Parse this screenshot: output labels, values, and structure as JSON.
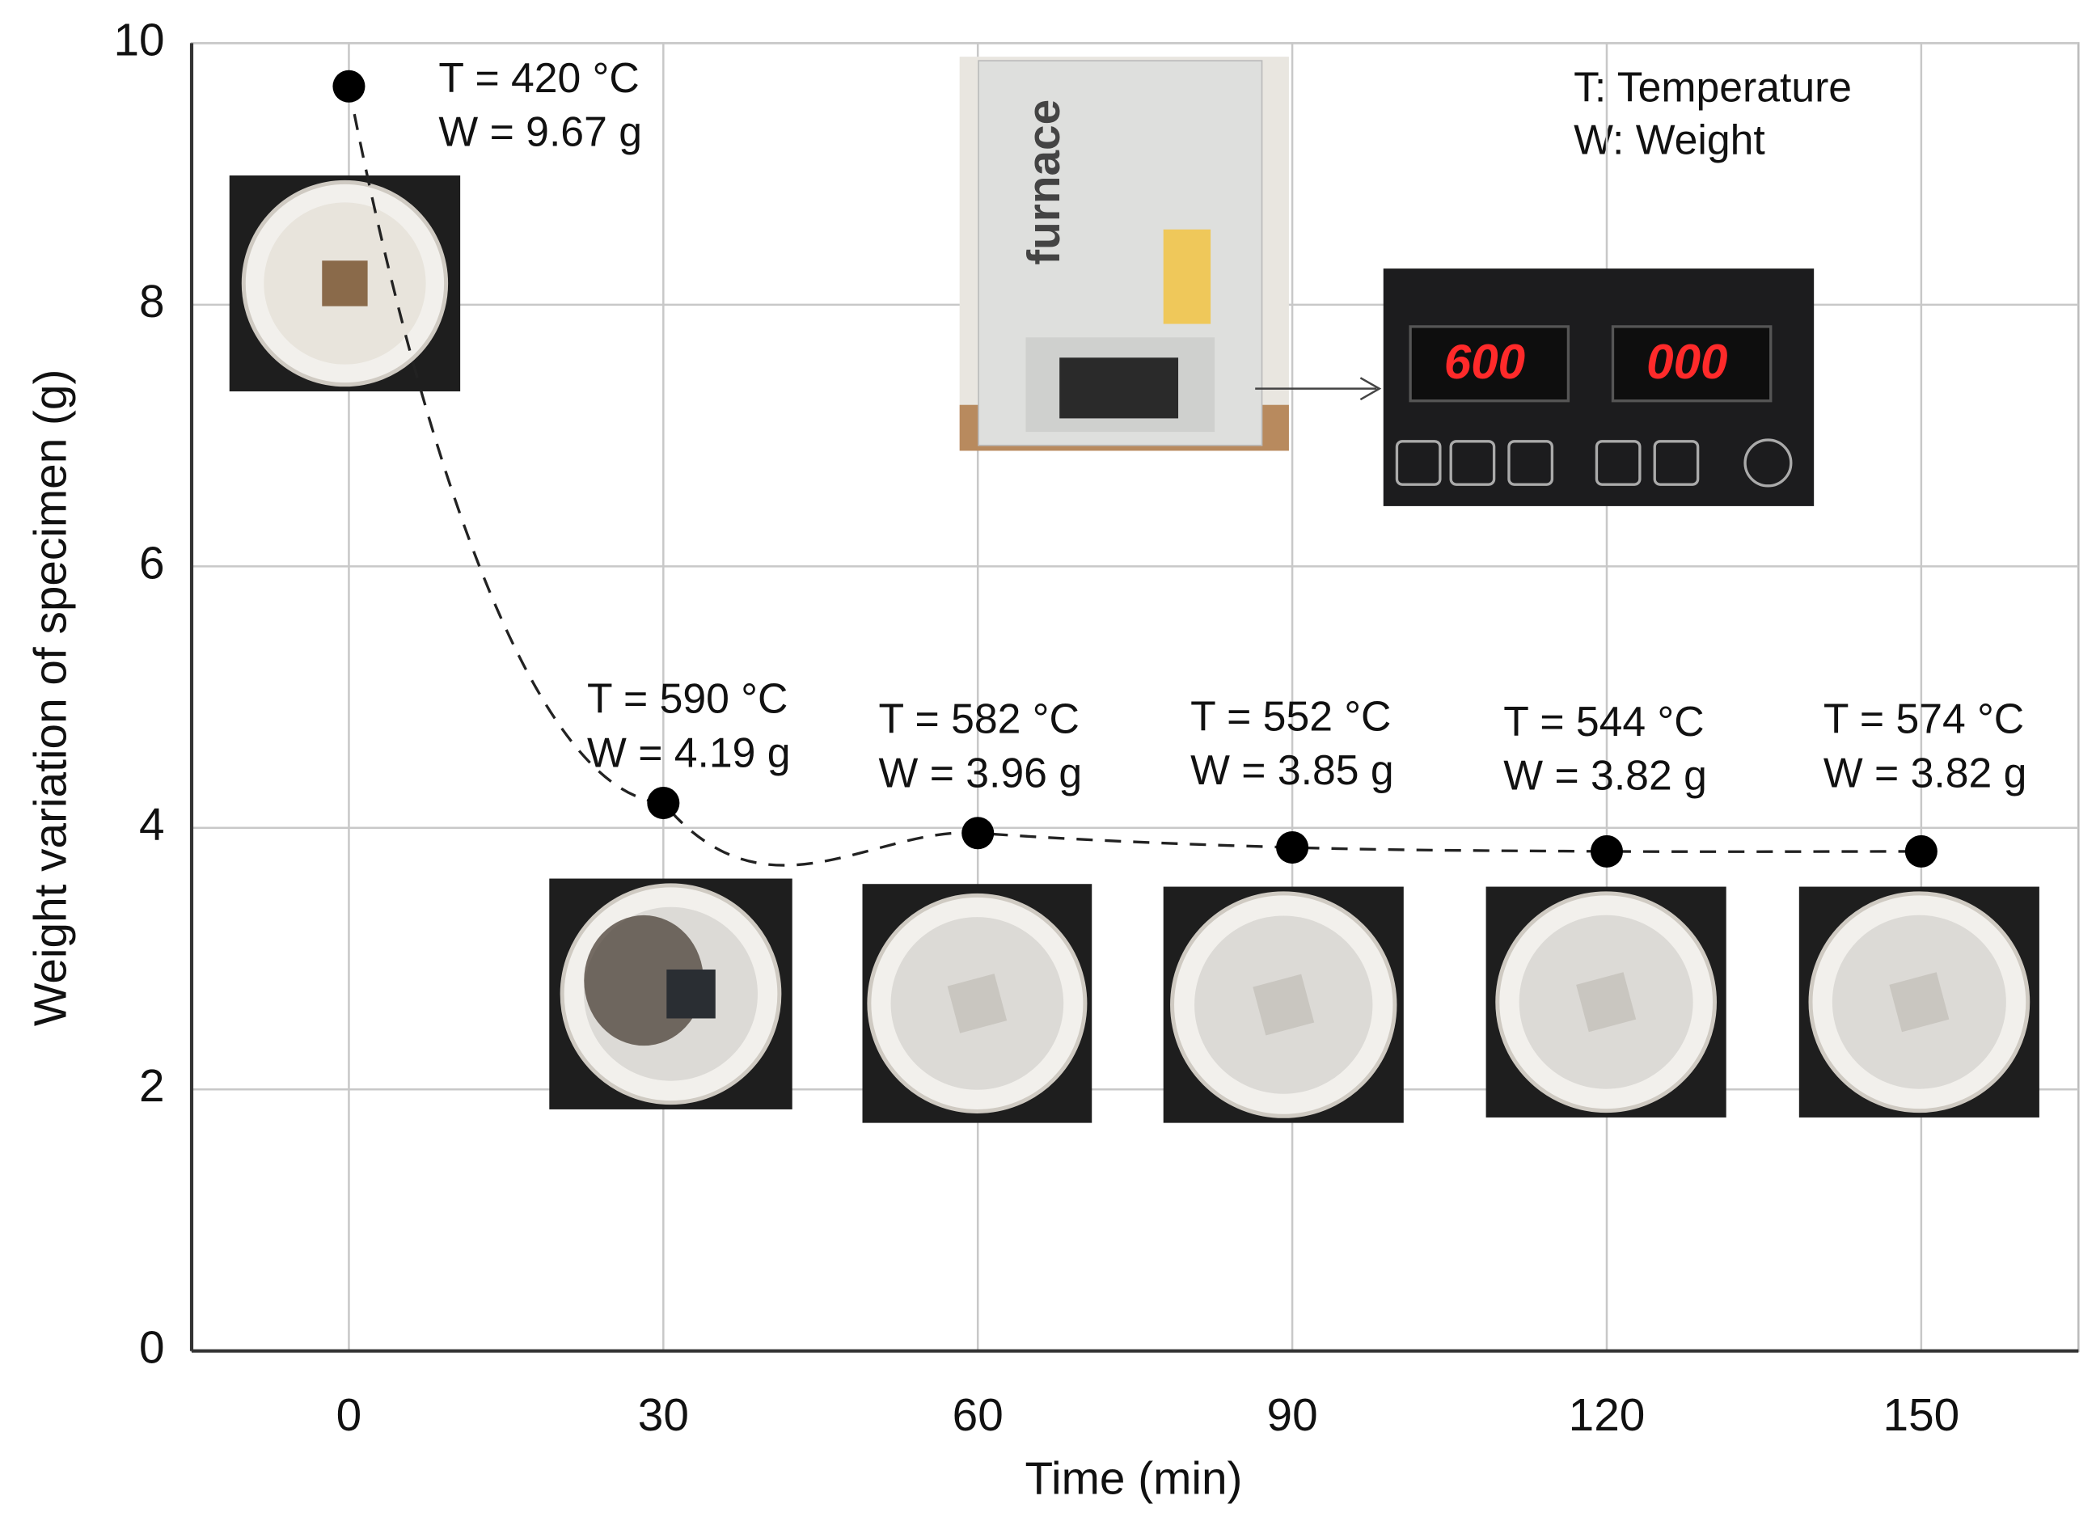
{
  "chart_data": {
    "type": "line",
    "x_label": "Time (min)",
    "y_label": "Weight variation of specimen (g)",
    "x": [
      0,
      30,
      60,
      90,
      120,
      150
    ],
    "values": [
      9.67,
      4.19,
      3.96,
      3.85,
      3.82,
      3.82
    ],
    "color": "#000000",
    "xlim": [
      -15,
      165
    ],
    "xticks": [
      0,
      30,
      60,
      90,
      120,
      150
    ],
    "ylim": [
      0,
      10
    ],
    "yticks": [
      0,
      2,
      4,
      6,
      8,
      10
    ],
    "grid": true,
    "annotations": [
      [
        "T = 420 °C",
        "W = 9.67 g"
      ],
      [
        "T = 590 °C",
        "W = 4.19 g"
      ],
      [
        "T = 582 °C",
        "W = 3.96 g"
      ],
      [
        "T = 552 °C",
        "W = 3.85 g"
      ],
      [
        "T = 544 °C",
        "W = 3.82 g"
      ],
      [
        "T = 574 °C",
        "W = 3.82 g"
      ]
    ],
    "key": [
      "T: Temperature",
      "W: Weight"
    ],
    "inset_texts": [
      "furnace",
      "600",
      "000"
    ]
  }
}
